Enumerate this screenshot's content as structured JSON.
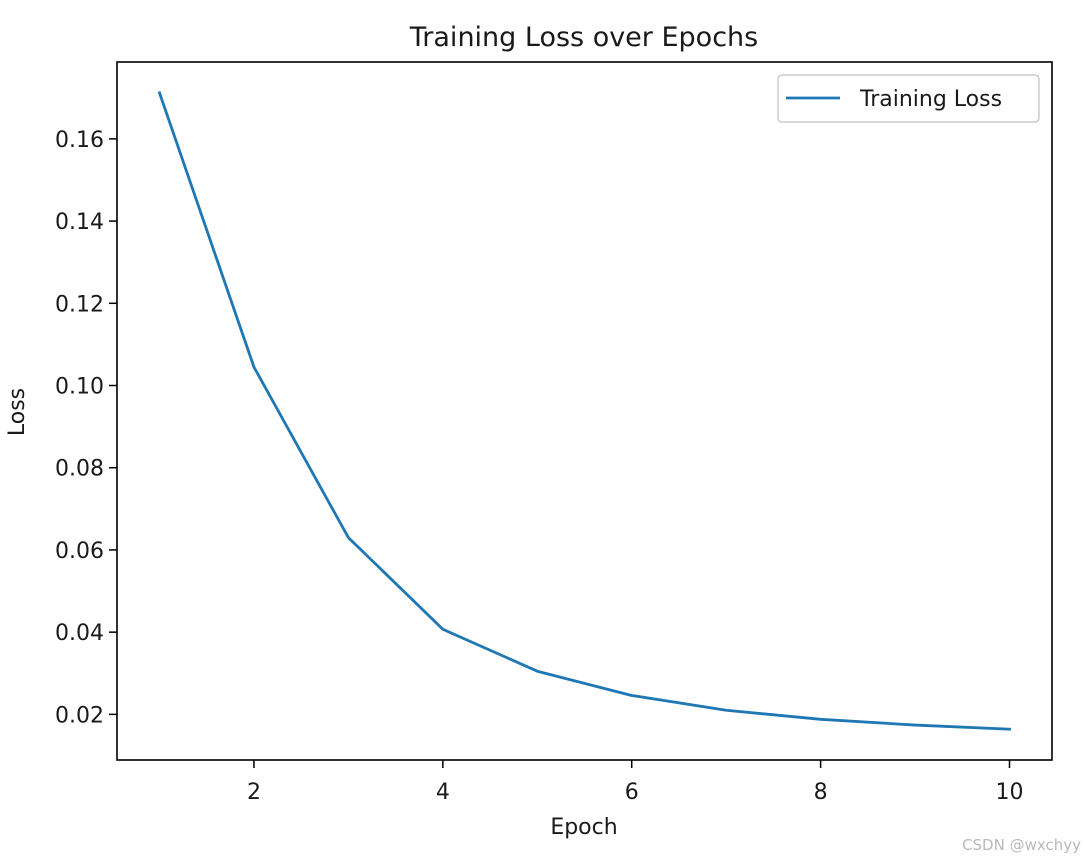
{
  "chart_data": {
    "type": "line",
    "title": "Training Loss over Epochs",
    "xlabel": "Epoch",
    "ylabel": "Loss",
    "x": [
      1,
      2,
      3,
      4,
      5,
      6,
      7,
      8,
      9,
      10
    ],
    "series": [
      {
        "name": "Training Loss",
        "color": "#1f77b4",
        "values": [
          0.1712,
          0.1045,
          0.063,
          0.0407,
          0.0305,
          0.0246,
          0.021,
          0.0188,
          0.0174,
          0.0164
        ]
      }
    ],
    "xlim": [
      0.55,
      10.45
    ],
    "ylim": [
      0.0089,
      0.1787
    ],
    "xticks": [
      2,
      4,
      6,
      8,
      10
    ],
    "xtick_labels": [
      "2",
      "4",
      "6",
      "8",
      "10"
    ],
    "yticks": [
      0.02,
      0.04,
      0.06,
      0.08,
      0.1,
      0.12,
      0.14,
      0.16
    ],
    "ytick_labels": [
      "0.02",
      "0.04",
      "0.06",
      "0.08",
      "0.10",
      "0.12",
      "0.14",
      "0.16"
    ],
    "grid": false,
    "legend_position": "upper right"
  },
  "watermark": "CSDN @wxchyy"
}
